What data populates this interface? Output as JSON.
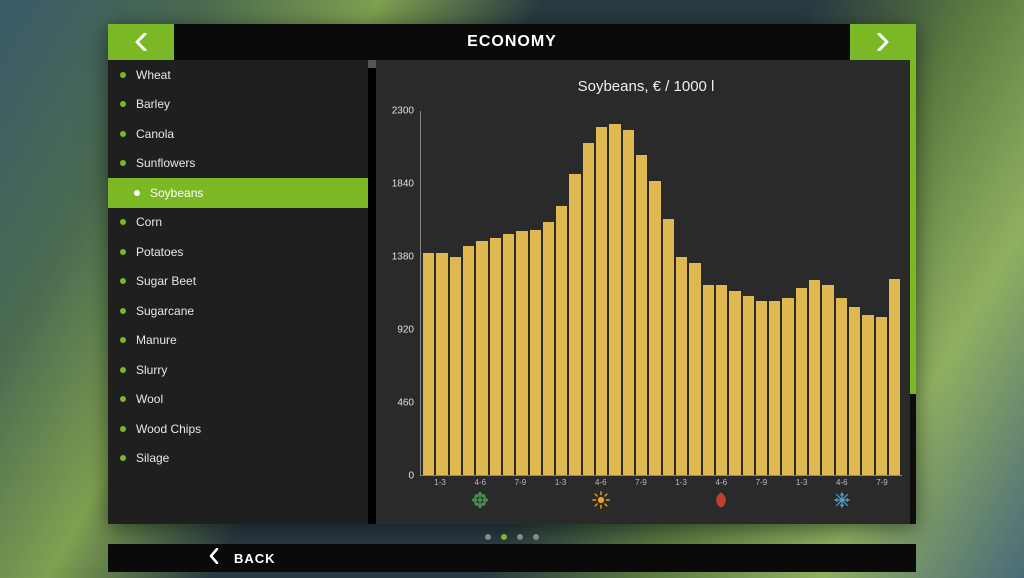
{
  "header": {
    "title": "ECONOMY"
  },
  "sidebar": {
    "items": [
      {
        "label": "Wheat",
        "selected": false
      },
      {
        "label": "Barley",
        "selected": false
      },
      {
        "label": "Canola",
        "selected": false
      },
      {
        "label": "Sunflowers",
        "selected": false
      },
      {
        "label": "Soybeans",
        "selected": true
      },
      {
        "label": "Corn",
        "selected": false
      },
      {
        "label": "Potatoes",
        "selected": false
      },
      {
        "label": "Sugar Beet",
        "selected": false
      },
      {
        "label": "Sugarcane",
        "selected": false
      },
      {
        "label": "Manure",
        "selected": false
      },
      {
        "label": "Slurry",
        "selected": false
      },
      {
        "label": "Wool",
        "selected": false
      },
      {
        "label": "Wood Chips",
        "selected": false
      },
      {
        "label": "Silage",
        "selected": false
      }
    ],
    "scroll_indicator": {
      "green_top_pct": 0,
      "green_height_pct": 72,
      "track_color": "#0d0d0d",
      "green_color": "#7bb825"
    }
  },
  "chart": {
    "title": "Soybeans, € / 1000 l",
    "type": "bar",
    "ylim": [
      0,
      2300
    ],
    "yticks": [
      0,
      460,
      920,
      1380,
      1840,
      2300
    ],
    "values": [
      1400,
      1400,
      1380,
      1450,
      1480,
      1500,
      1520,
      1540,
      1550,
      1600,
      1700,
      1900,
      2100,
      2200,
      2220,
      2180,
      2020,
      1860,
      1620,
      1380,
      1340,
      1200,
      1200,
      1160,
      1130,
      1100,
      1100,
      1120,
      1180,
      1230,
      1200,
      1120,
      1060,
      1010,
      1000,
      1240
    ],
    "bar_color": "#e0b850",
    "axis_color": "#888888",
    "tick_label_color": "#e0e0e0",
    "x_tick_labels_per_season": [
      "1-3",
      "4-6",
      "7-9"
    ],
    "seasons": [
      {
        "name": "spring",
        "icon": "spring-icon",
        "color": "#4a8a4a"
      },
      {
        "name": "summer",
        "icon": "summer-icon",
        "color": "#e8a020"
      },
      {
        "name": "autumn",
        "icon": "autumn-icon",
        "color": "#c04030"
      },
      {
        "name": "winter",
        "icon": "winter-icon",
        "color": "#5aa0c8"
      }
    ],
    "background_color": "#2a2a2a",
    "title_fontsize": 15,
    "tick_fontsize": 10
  },
  "pagination": {
    "count": 4,
    "active_index": 1,
    "dot_color": "#888888",
    "active_color": "#7bb825"
  },
  "footer": {
    "back_label": "BACK"
  },
  "colors": {
    "accent": "#7bb825",
    "panel_bg": "#2e2f30",
    "sidebar_bg": "#1f1f1f",
    "titlebar_bg": "#0a0a0a"
  }
}
